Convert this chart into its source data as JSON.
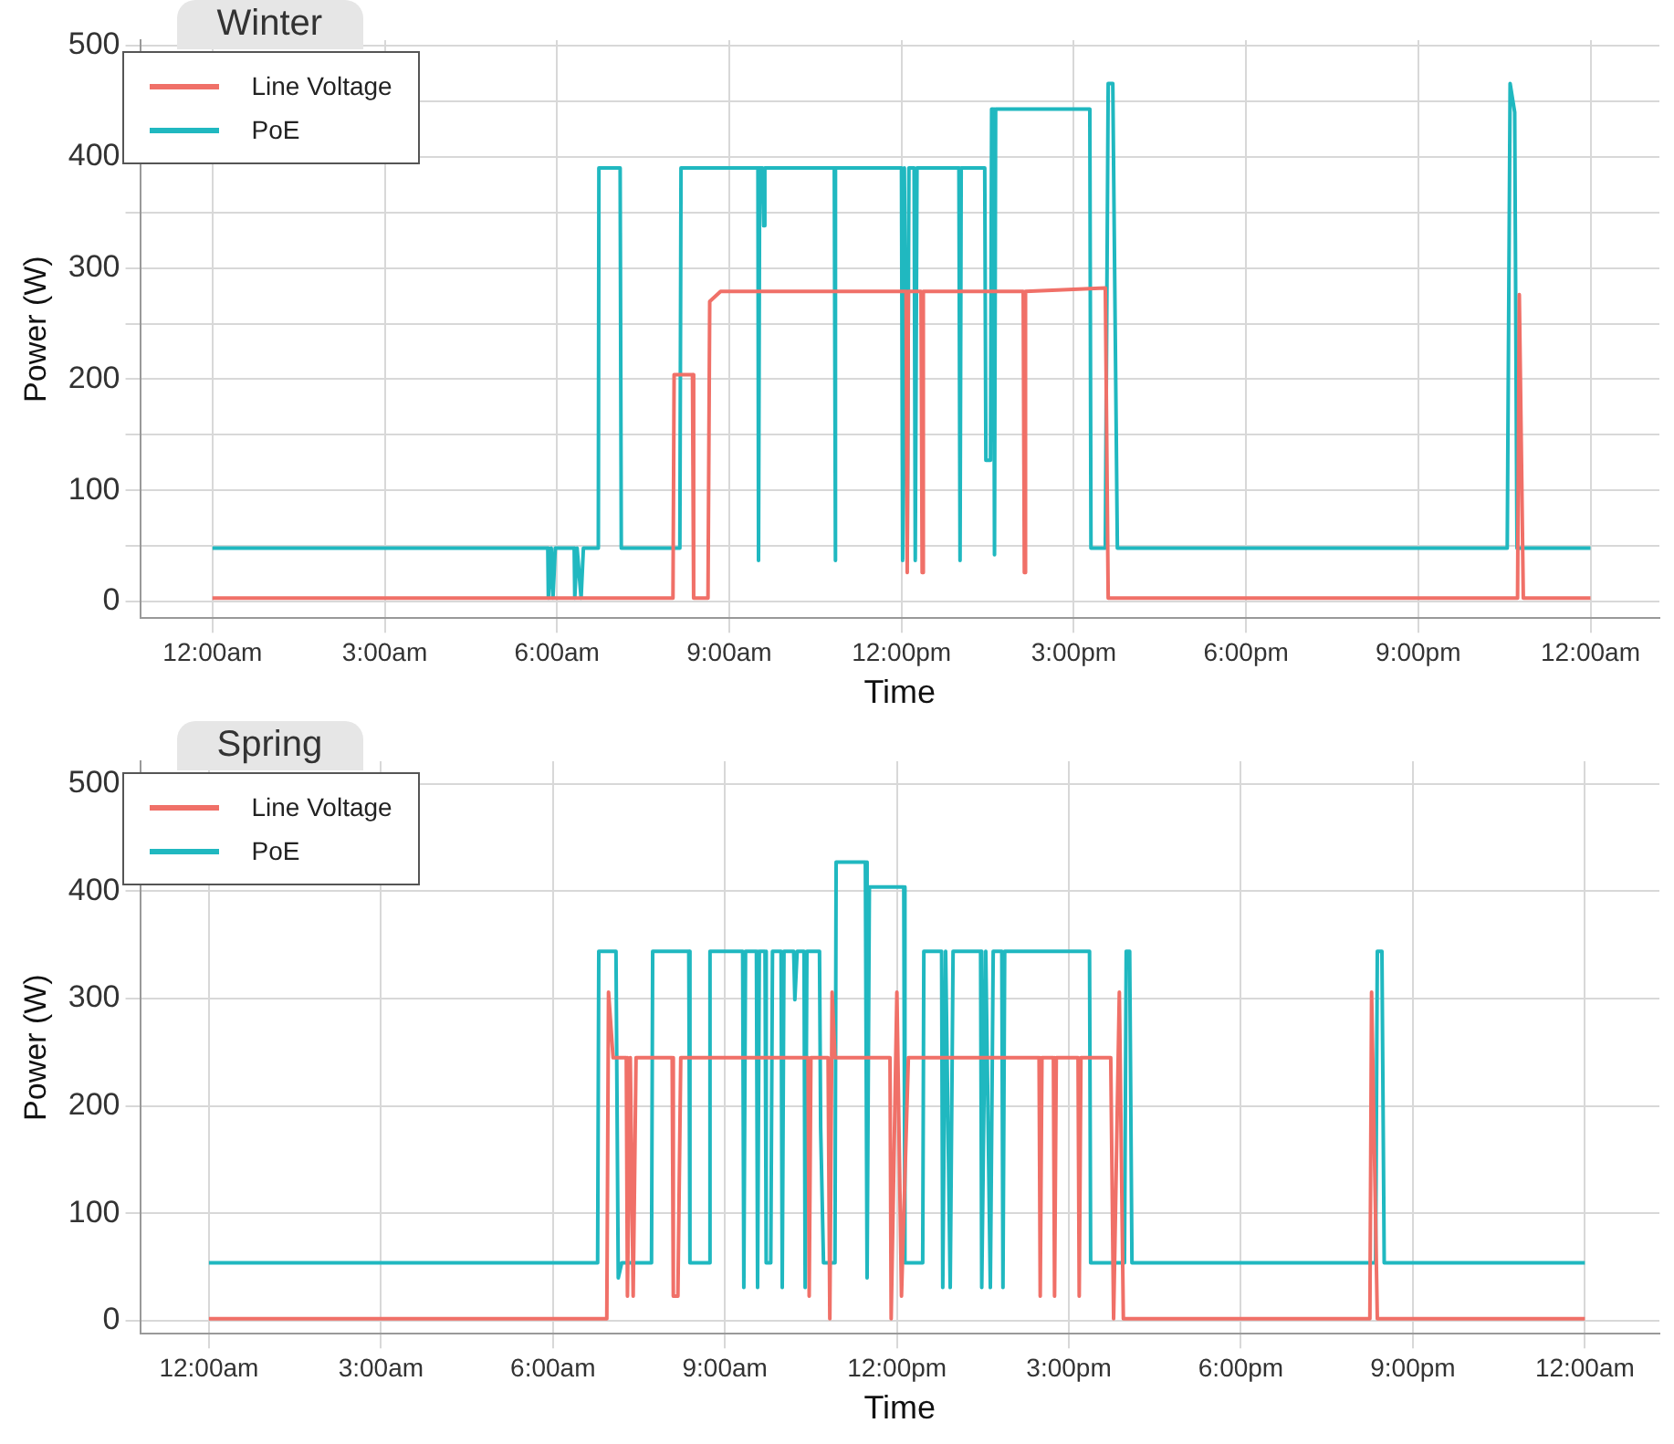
{
  "chart_data": [
    {
      "type": "line",
      "title": "Winter",
      "xlabel": "Time",
      "ylabel": "Power (W)",
      "grid": true,
      "legend": "top left",
      "marker": "none",
      "line_style": "solid",
      "xlim": [
        -1.26,
        25.2
      ],
      "xticks": [
        {
          "value": 0,
          "label": "12:00am"
        },
        {
          "value": 3,
          "label": "3:00am"
        },
        {
          "value": 6,
          "label": "6:00am"
        },
        {
          "value": 9,
          "label": "9:00am"
        },
        {
          "value": 12,
          "label": "12:00pm"
        },
        {
          "value": 15,
          "label": "3:00pm"
        },
        {
          "value": 18,
          "label": "6:00pm"
        },
        {
          "value": 21,
          "label": "9:00pm"
        },
        {
          "value": 24,
          "label": "12:00am"
        }
      ],
      "ylim": [
        -15,
        505
      ],
      "yticks": [
        0,
        {
          "value": 50,
          "label": null
        },
        100,
        {
          "value": 150,
          "label": null
        },
        200,
        {
          "value": 250,
          "label": null
        },
        300,
        {
          "value": 350,
          "label": null
        },
        400,
        {
          "value": 450,
          "label": null
        },
        500
      ],
      "series": [
        {
          "name": "Line Voltage",
          "color": "#f07068",
          "x": [
            0,
            8.02,
            8.04,
            8.36,
            8.38,
            8.63,
            8.66,
            8.85,
            12.08,
            12.1,
            12.12,
            12.34,
            12.36,
            12.38,
            14.12,
            14.14,
            14.16,
            15.55,
            15.6,
            22.73,
            22.76,
            22.83,
            24
          ],
          "values": [
            3,
            3,
            204,
            204,
            3,
            3,
            270,
            279,
            279,
            26,
            279,
            279,
            26,
            279,
            279,
            26,
            279,
            282,
            3,
            3,
            276,
            3,
            3
          ]
        },
        {
          "name": "PoE",
          "color": "#20b8c0",
          "x": [
            0,
            5.84,
            5.85,
            5.9,
            5.93,
            5.97,
            6.3,
            6.31,
            6.35,
            6.42,
            6.46,
            6.72,
            6.73,
            7.1,
            7.12,
            8.14,
            8.16,
            9.5,
            9.51,
            9.53,
            9.58,
            9.6,
            9.62,
            10.83,
            10.84,
            10.86,
            12.0,
            12.02,
            12.05,
            12.1,
            12.13,
            12.22,
            12.24,
            12.27,
            13.0,
            13.02,
            13.04,
            13.45,
            13.47,
            13.55,
            13.57,
            13.6,
            13.62,
            13.64,
            15.28,
            15.3,
            15.55,
            15.6,
            15.68,
            15.76,
            22.55,
            22.6,
            22.68,
            22.72,
            24
          ],
          "values": [
            48,
            48,
            3,
            48,
            3,
            48,
            48,
            3,
            48,
            3,
            48,
            48,
            390,
            390,
            48,
            48,
            390,
            390,
            37,
            390,
            390,
            338,
            390,
            390,
            37,
            390,
            390,
            37,
            390,
            37,
            390,
            390,
            37,
            390,
            390,
            37,
            390,
            390,
            127,
            127,
            443,
            443,
            42,
            443,
            443,
            48,
            48,
            466,
            466,
            48,
            48,
            466,
            440,
            48,
            48
          ]
        }
      ]
    },
    {
      "type": "line",
      "title": "Spring",
      "xlabel": "Time",
      "ylabel": "Power (W)",
      "grid": true,
      "legend": "top left",
      "marker": "none",
      "line_style": "solid",
      "xlim": [
        -1.2,
        25.3
      ],
      "xticks": [
        {
          "value": 0,
          "label": "12:00am"
        },
        {
          "value": 3,
          "label": "3:00am"
        },
        {
          "value": 6,
          "label": "6:00am"
        },
        {
          "value": 9,
          "label": "9:00am"
        },
        {
          "value": 12,
          "label": "12:00pm"
        },
        {
          "value": 15,
          "label": "3:00pm"
        },
        {
          "value": 18,
          "label": "6:00pm"
        },
        {
          "value": 21,
          "label": "9:00pm"
        },
        {
          "value": 24,
          "label": "12:00am"
        }
      ],
      "ylim": [
        -12,
        521
      ],
      "yticks": [
        0,
        100,
        200,
        300,
        400,
        500
      ],
      "series": [
        {
          "name": "Line Voltage",
          "color": "#f07068",
          "x": [
            0,
            6.94,
            6.97,
            7.05,
            7.28,
            7.3,
            7.35,
            7.4,
            7.45,
            8.08,
            8.1,
            8.18,
            8.23,
            10.45,
            10.47,
            10.5,
            10.8,
            10.83,
            10.87,
            10.92,
            11.88,
            11.9,
            12.0,
            12.08,
            12.2,
            14.48,
            14.5,
            14.53,
            14.73,
            14.75,
            14.78,
            15.16,
            15.18,
            15.21,
            15.73,
            15.78,
            15.88,
            15.95,
            20.25,
            20.28,
            20.38,
            24
          ],
          "values": [
            2,
            2,
            306,
            245,
            245,
            23,
            245,
            23,
            245,
            245,
            23,
            23,
            245,
            245,
            23,
            245,
            245,
            2,
            306,
            245,
            245,
            2,
            306,
            23,
            245,
            245,
            23,
            245,
            245,
            23,
            245,
            245,
            23,
            245,
            245,
            2,
            306,
            2,
            2,
            306,
            2,
            2
          ]
        },
        {
          "name": "PoE",
          "color": "#20b8c0",
          "x": [
            0,
            6.78,
            6.8,
            7.1,
            7.14,
            7.2,
            7.72,
            7.74,
            8.37,
            8.39,
            8.72,
            8.74,
            9.31,
            9.33,
            9.36,
            9.55,
            9.57,
            9.6,
            9.7,
            9.72,
            9.8,
            9.83,
            9.98,
            10.0,
            10.03,
            10.2,
            10.22,
            10.26,
            10.38,
            10.4,
            10.43,
            10.65,
            10.67,
            10.72,
            10.92,
            10.94,
            11.45,
            11.48,
            11.52,
            12.12,
            12.14,
            12.45,
            12.47,
            12.78,
            12.8,
            12.85,
            12.93,
            12.98,
            13.46,
            13.48,
            13.55,
            13.63,
            13.68,
            13.83,
            13.85,
            13.88,
            15.36,
            15.38,
            15.97,
            16.0,
            16.06,
            16.1,
            20.35,
            20.38,
            20.46,
            20.5,
            24
          ],
          "values": [
            54,
            54,
            344,
            344,
            40,
            54,
            54,
            344,
            344,
            54,
            54,
            344,
            344,
            31,
            344,
            344,
            31,
            344,
            344,
            54,
            54,
            344,
            344,
            31,
            344,
            344,
            299,
            344,
            344,
            31,
            344,
            344,
            180,
            54,
            54,
            427,
            427,
            40,
            404,
            404,
            54,
            54,
            344,
            344,
            31,
            344,
            31,
            344,
            344,
            31,
            344,
            31,
            344,
            344,
            31,
            344,
            344,
            54,
            54,
            344,
            344,
            54,
            54,
            344,
            344,
            54,
            54
          ]
        }
      ]
    }
  ]
}
